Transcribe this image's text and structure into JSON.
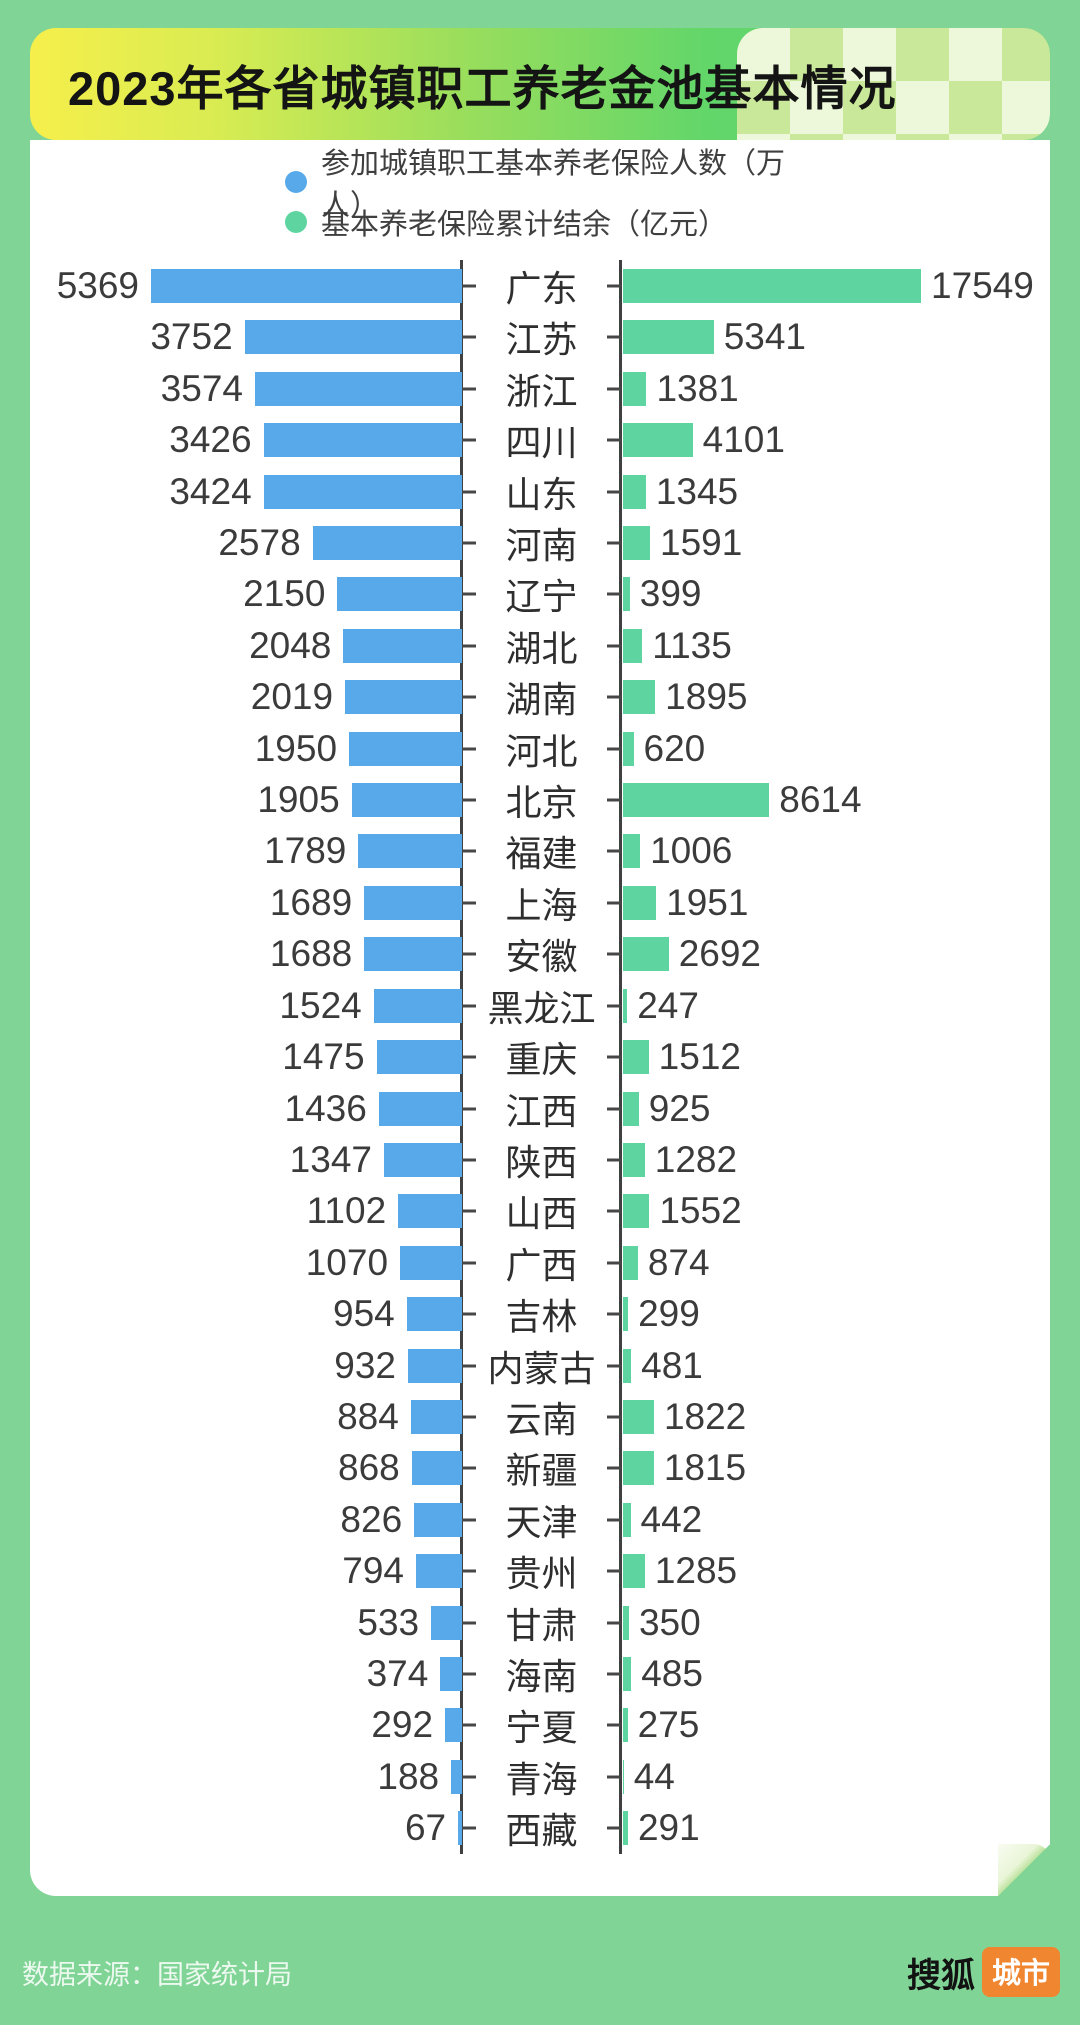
{
  "header": {
    "title": "2023年各省城镇职工养老金池基本情况"
  },
  "legend": [
    {
      "label": "参加城镇职工基本养老保险人数（万人）",
      "color": "#57a9e9"
    },
    {
      "label": "基本养老保险累计结余（亿元）",
      "color": "#5ed5a1"
    }
  ],
  "chart_data": {
    "type": "bar",
    "variant": "tornado-dual-axis",
    "title": "2023年各省城镇职工养老金池基本情况",
    "categories": [
      "广东",
      "江苏",
      "浙江",
      "四川",
      "山东",
      "河南",
      "辽宁",
      "湖北",
      "湖南",
      "河北",
      "北京",
      "福建",
      "上海",
      "安徽",
      "黑龙江",
      "重庆",
      "江西",
      "陕西",
      "山西",
      "广西",
      "吉林",
      "内蒙古",
      "云南",
      "新疆",
      "天津",
      "贵州",
      "甘肃",
      "海南",
      "宁夏",
      "青海",
      "西藏"
    ],
    "series": [
      {
        "name": "参加城镇职工基本养老保险人数（万人）",
        "side": "left",
        "color": "#57a9e9",
        "values": [
          5369,
          3752,
          3574,
          3426,
          3424,
          2578,
          2150,
          2048,
          2019,
          1950,
          1905,
          1789,
          1689,
          1688,
          1524,
          1475,
          1436,
          1347,
          1102,
          1070,
          954,
          932,
          884,
          868,
          826,
          794,
          533,
          374,
          292,
          188,
          67
        ]
      },
      {
        "name": "基本养老保险累计结余（亿元）",
        "side": "right",
        "color": "#5ed5a1",
        "values": [
          17549,
          5341,
          1381,
          4101,
          1345,
          1591,
          399,
          1135,
          1895,
          620,
          8614,
          1006,
          1951,
          2692,
          247,
          1512,
          925,
          1282,
          1552,
          874,
          299,
          481,
          1822,
          1815,
          442,
          1285,
          350,
          485,
          275,
          44,
          291
        ]
      }
    ],
    "xlim_left": [
      0,
      5369
    ],
    "xlim_right": [
      0,
      17549
    ],
    "grid": false,
    "legend_position": "top-center"
  },
  "footer": {
    "source": "数据来源：国家统计局",
    "brand": "搜狐",
    "brand_badge": "城市",
    "badge_color": "#f0862f"
  }
}
